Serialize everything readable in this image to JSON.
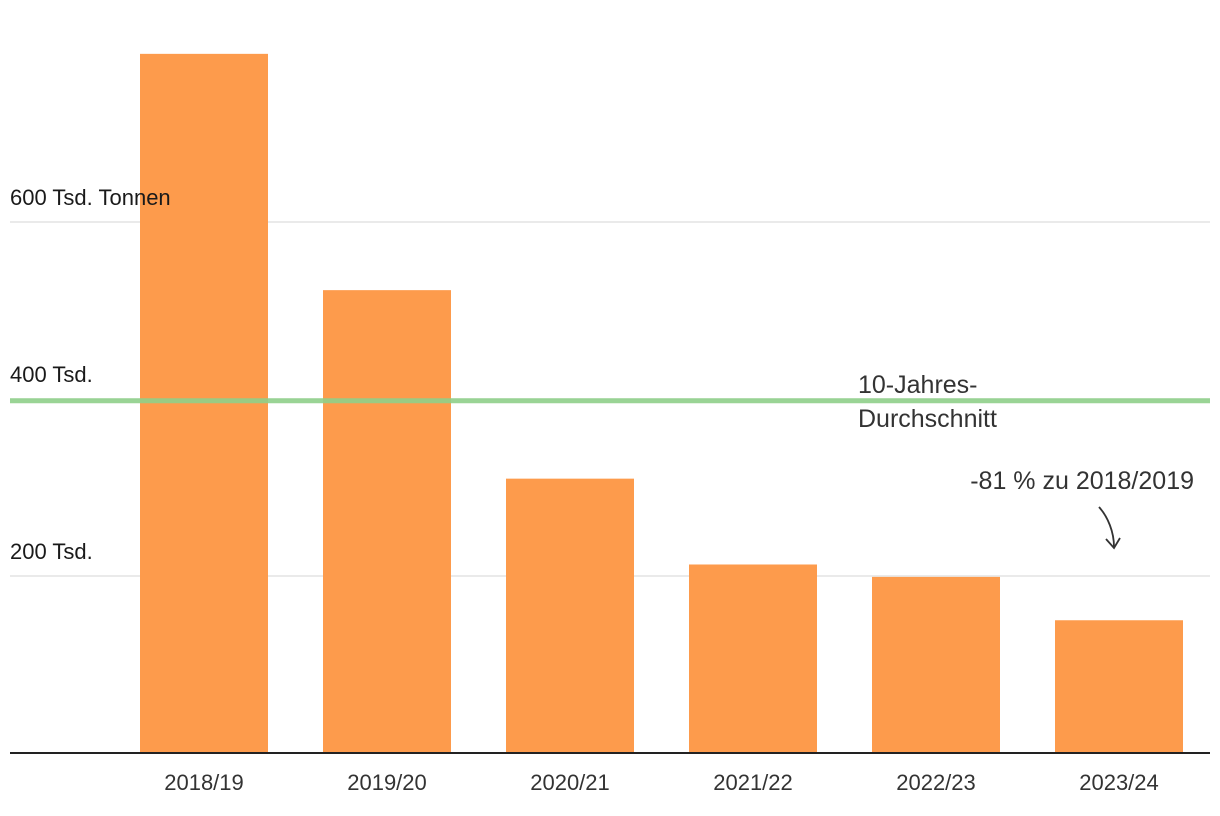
{
  "chart_data": {
    "type": "bar",
    "categories": [
      "2018/19",
      "2019/20",
      "2020/21",
      "2021/22",
      "2022/23",
      "2023/24"
    ],
    "values": [
      790,
      523,
      310,
      213,
      199,
      150
    ],
    "ylim": [
      0,
      800
    ],
    "y_ticks": [
      {
        "value": 200,
        "label": "200 Tsd."
      },
      {
        "value": 400,
        "label": "400 Tsd."
      },
      {
        "value": 600,
        "label": "600 Tsd. Tonnen"
      }
    ],
    "grid": true,
    "reference_line": {
      "value": 398,
      "label_line1": "10-Jahres-",
      "label_line2": "Durchschnitt"
    },
    "annotation": {
      "text": "-81 % zu 2018/2019",
      "target_category": "2023/24"
    },
    "colors": {
      "bar": "#fd9b4c",
      "reference_line": "#8fcf8a",
      "grid": "#dddddd",
      "baseline": "#222222"
    }
  }
}
